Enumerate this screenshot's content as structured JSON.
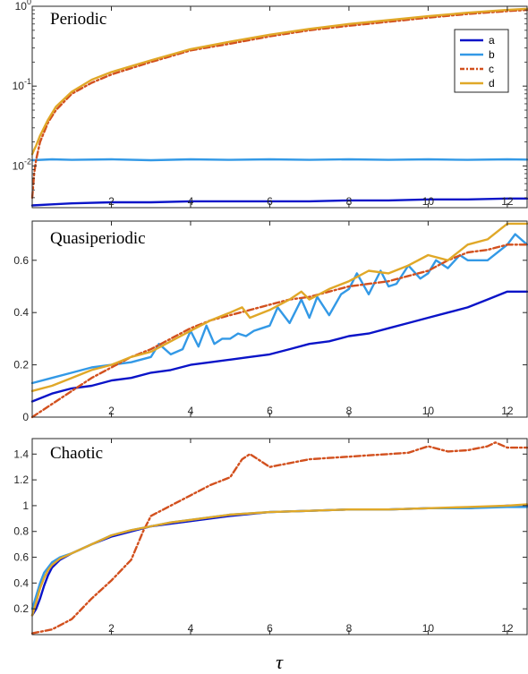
{
  "chart_data": [
    {
      "type": "line",
      "title": "Periodic",
      "xlabel": "",
      "ylabel": "",
      "yscale": "log",
      "xlim": [
        0,
        12.5
      ],
      "ylim": [
        0.003,
        1
      ],
      "xticks": [
        2,
        4,
        6,
        8,
        10,
        12
      ],
      "yticks": [
        0.01,
        0.1,
        1
      ],
      "ytick_labels": [
        [
          "10",
          "-2"
        ],
        [
          "10",
          "-1"
        ],
        [
          "10",
          "0"
        ]
      ],
      "grid": false,
      "legend": "top-right",
      "series": [
        {
          "name": "a",
          "color": "#0a14c8",
          "dash": "solid",
          "x": [
            0,
            0.5,
            1,
            2,
            3,
            4,
            5,
            6,
            7,
            8,
            9,
            10,
            11,
            12,
            12.5
          ],
          "y": [
            0.0032,
            0.0033,
            0.0034,
            0.0035,
            0.0035,
            0.0036,
            0.0036,
            0.0036,
            0.0036,
            0.0037,
            0.0037,
            0.0038,
            0.0038,
            0.0039,
            0.0039
          ]
        },
        {
          "name": "b",
          "color": "#3399e6",
          "dash": "solid",
          "x": [
            0,
            0.5,
            1,
            2,
            3,
            4,
            5,
            6,
            7,
            8,
            9,
            10,
            11,
            12,
            12.5
          ],
          "y": [
            0.0118,
            0.0121,
            0.0119,
            0.0121,
            0.0118,
            0.0121,
            0.0119,
            0.0121,
            0.0119,
            0.0121,
            0.0119,
            0.0121,
            0.0119,
            0.0121,
            0.012
          ]
        },
        {
          "name": "c",
          "color": "#d2501e",
          "dash": "dashdot",
          "x": [
            0,
            0.05,
            0.1,
            0.2,
            0.4,
            0.6,
            1,
            1.5,
            2,
            3,
            4,
            5,
            6,
            7,
            8,
            9,
            10,
            11,
            12,
            12.5
          ],
          "y": [
            0.004,
            0.008,
            0.012,
            0.02,
            0.035,
            0.05,
            0.08,
            0.11,
            0.14,
            0.2,
            0.28,
            0.34,
            0.42,
            0.5,
            0.57,
            0.64,
            0.72,
            0.8,
            0.87,
            0.9
          ]
        },
        {
          "name": "d",
          "color": "#e0a828",
          "dash": "solid",
          "x": [
            0,
            0.05,
            0.1,
            0.2,
            0.4,
            0.6,
            1,
            1.5,
            2,
            3,
            4,
            5,
            6,
            7,
            8,
            9,
            10,
            11,
            12,
            12.5
          ],
          "y": [
            0.014,
            0.016,
            0.018,
            0.024,
            0.038,
            0.055,
            0.085,
            0.12,
            0.15,
            0.21,
            0.29,
            0.36,
            0.44,
            0.52,
            0.6,
            0.67,
            0.75,
            0.83,
            0.9,
            0.93
          ]
        }
      ]
    },
    {
      "type": "line",
      "title": "Quasiperiodic",
      "xlabel": "",
      "ylabel": "",
      "xlim": [
        0,
        12.5
      ],
      "ylim": [
        0,
        0.75
      ],
      "xticks": [
        2,
        4,
        6,
        8,
        10,
        12
      ],
      "yticks": [
        0,
        0.2,
        0.4,
        0.6
      ],
      "ytick_labels": [
        "0",
        "0.2",
        "0.4",
        "0.6"
      ],
      "grid": false,
      "series": [
        {
          "name": "a",
          "color": "#0a14c8",
          "dash": "solid",
          "x": [
            0,
            0.5,
            1,
            1.5,
            2,
            2.5,
            3,
            3.5,
            4,
            4.5,
            5,
            5.5,
            6,
            6.5,
            7,
            7.5,
            8,
            8.5,
            9,
            9.5,
            10,
            10.5,
            11,
            11.5,
            12,
            12.5
          ],
          "y": [
            0.06,
            0.09,
            0.11,
            0.12,
            0.14,
            0.15,
            0.17,
            0.18,
            0.2,
            0.21,
            0.22,
            0.23,
            0.24,
            0.26,
            0.28,
            0.29,
            0.31,
            0.32,
            0.34,
            0.36,
            0.38,
            0.4,
            0.42,
            0.45,
            0.48,
            0.48
          ]
        },
        {
          "name": "b",
          "color": "#3399e6",
          "dash": "solid",
          "x": [
            0,
            0.5,
            1,
            1.5,
            2,
            2.5,
            3,
            3.2,
            3.5,
            3.8,
            4,
            4.2,
            4.4,
            4.6,
            4.8,
            5,
            5.2,
            5.4,
            5.6,
            5.8,
            6,
            6.2,
            6.5,
            6.8,
            7,
            7.2,
            7.5,
            7.8,
            8,
            8.2,
            8.5,
            8.8,
            9,
            9.2,
            9.5,
            9.8,
            10,
            10.2,
            10.5,
            10.8,
            11,
            11.5,
            12,
            12.2,
            12.5
          ],
          "y": [
            0.13,
            0.15,
            0.17,
            0.19,
            0.2,
            0.21,
            0.23,
            0.28,
            0.24,
            0.26,
            0.33,
            0.27,
            0.35,
            0.28,
            0.3,
            0.3,
            0.32,
            0.31,
            0.33,
            0.34,
            0.35,
            0.42,
            0.36,
            0.45,
            0.38,
            0.46,
            0.39,
            0.47,
            0.49,
            0.55,
            0.47,
            0.56,
            0.5,
            0.51,
            0.58,
            0.53,
            0.55,
            0.6,
            0.57,
            0.62,
            0.6,
            0.6,
            0.66,
            0.7,
            0.66
          ]
        },
        {
          "name": "c",
          "color": "#d2501e",
          "dash": "dashdot",
          "x": [
            0,
            0.5,
            1,
            1.5,
            2,
            2.5,
            3,
            3.5,
            4,
            4.5,
            5,
            5.5,
            6,
            6.5,
            7,
            7.5,
            8,
            8.5,
            9,
            9.5,
            10,
            10.5,
            11,
            11.5,
            12,
            12.5
          ],
          "y": [
            0,
            0.05,
            0.1,
            0.15,
            0.19,
            0.23,
            0.26,
            0.3,
            0.34,
            0.37,
            0.39,
            0.41,
            0.43,
            0.45,
            0.46,
            0.48,
            0.5,
            0.51,
            0.52,
            0.54,
            0.56,
            0.6,
            0.63,
            0.64,
            0.66,
            0.66
          ]
        },
        {
          "name": "d",
          "color": "#e0a828",
          "dash": "solid",
          "x": [
            0,
            0.5,
            1,
            1.5,
            2,
            2.5,
            3,
            3.5,
            4,
            4.5,
            5,
            5.3,
            5.5,
            6,
            6.5,
            6.8,
            7,
            7.5,
            8,
            8.5,
            9,
            9.5,
            10,
            10.5,
            11,
            11.5,
            12,
            12.5
          ],
          "y": [
            0.1,
            0.12,
            0.15,
            0.18,
            0.2,
            0.23,
            0.25,
            0.29,
            0.33,
            0.37,
            0.4,
            0.42,
            0.38,
            0.41,
            0.45,
            0.48,
            0.45,
            0.49,
            0.52,
            0.56,
            0.55,
            0.58,
            0.62,
            0.6,
            0.66,
            0.68,
            0.74,
            0.74
          ]
        }
      ]
    },
    {
      "type": "line",
      "title": "Chaotic",
      "xlabel": "τ",
      "ylabel": "",
      "xlim": [
        0,
        12.5
      ],
      "ylim": [
        0,
        1.52
      ],
      "xticks": [
        2,
        4,
        6,
        8,
        10,
        12
      ],
      "yticks": [
        0.2,
        0.4,
        0.6,
        0.8,
        1,
        1.2,
        1.4
      ],
      "ytick_labels": [
        "0.2",
        "0.4",
        "0.6",
        "0.8",
        "1",
        "1.2",
        "1.4"
      ],
      "grid": false,
      "series": [
        {
          "name": "a",
          "color": "#0a14c8",
          "dash": "solid",
          "x": [
            0,
            0.1,
            0.2,
            0.3,
            0.4,
            0.5,
            0.7,
            1,
            1.5,
            2,
            2.5,
            3,
            3.5,
            4,
            5,
            6,
            7,
            8,
            9,
            10,
            11,
            12,
            12.5
          ],
          "y": [
            0.15,
            0.2,
            0.28,
            0.38,
            0.46,
            0.52,
            0.58,
            0.63,
            0.7,
            0.76,
            0.8,
            0.84,
            0.86,
            0.88,
            0.92,
            0.95,
            0.96,
            0.97,
            0.97,
            0.98,
            0.98,
            1.0,
            1.0
          ]
        },
        {
          "name": "b",
          "color": "#3399e6",
          "dash": "solid",
          "x": [
            0,
            0.1,
            0.2,
            0.3,
            0.4,
            0.5,
            0.7,
            1,
            1.5,
            2,
            2.5,
            3,
            3.5,
            4,
            5,
            6,
            7,
            8,
            9,
            10,
            11,
            12,
            12.5
          ],
          "y": [
            0.2,
            0.3,
            0.4,
            0.48,
            0.52,
            0.56,
            0.6,
            0.63,
            0.7,
            0.77,
            0.81,
            0.84,
            0.87,
            0.89,
            0.93,
            0.95,
            0.96,
            0.97,
            0.97,
            0.98,
            0.98,
            0.99,
            0.99
          ]
        },
        {
          "name": "c",
          "color": "#d2501e",
          "dash": "dashdot",
          "x": [
            0,
            0.5,
            1,
            1.5,
            2,
            2.5,
            2.8,
            3,
            3.5,
            4,
            4.5,
            5,
            5.3,
            5.5,
            6,
            6.5,
            7,
            7.5,
            8,
            8.5,
            9,
            9.5,
            10,
            10.5,
            11,
            11.5,
            11.7,
            12,
            12.5
          ],
          "y": [
            0.01,
            0.04,
            0.12,
            0.28,
            0.42,
            0.58,
            0.8,
            0.92,
            1.0,
            1.08,
            1.16,
            1.22,
            1.36,
            1.4,
            1.3,
            1.33,
            1.36,
            1.37,
            1.38,
            1.39,
            1.4,
            1.41,
            1.46,
            1.42,
            1.43,
            1.46,
            1.49,
            1.45,
            1.45
          ]
        },
        {
          "name": "d",
          "color": "#e0a828",
          "dash": "solid",
          "x": [
            0,
            0.1,
            0.2,
            0.3,
            0.4,
            0.5,
            0.7,
            1,
            1.5,
            2,
            2.5,
            3,
            3.5,
            4,
            5,
            6,
            7,
            8,
            9,
            10,
            11,
            12,
            12.5
          ],
          "y": [
            0.15,
            0.25,
            0.36,
            0.44,
            0.5,
            0.54,
            0.59,
            0.63,
            0.7,
            0.77,
            0.81,
            0.84,
            0.87,
            0.89,
            0.93,
            0.95,
            0.96,
            0.97,
            0.97,
            0.98,
            0.99,
            1.0,
            1.01
          ]
        }
      ]
    }
  ]
}
